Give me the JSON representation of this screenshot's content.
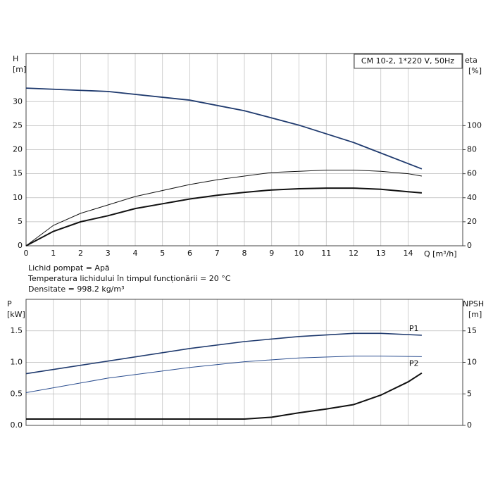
{
  "chart_data": [
    {
      "type": "line",
      "y_label": "H",
      "y_unit": "[m]",
      "y2_label": "eta",
      "y2_unit": "[%]",
      "x_label": "Q [m³/h]",
      "title": "CM 10-2, 1*220 V, 50Hz",
      "notes": [
        "Lichid pompat = Apă",
        "Temperatura lichidului în timpul funcționării = 20 °C",
        "Densitate = 998.2 kg/m³"
      ],
      "xlim": [
        0,
        16
      ],
      "xticks": [
        0,
        1,
        2,
        3,
        4,
        5,
        6,
        7,
        8,
        9,
        10,
        11,
        12,
        13,
        14
      ],
      "ylim": [
        0,
        40
      ],
      "yticks": [
        0,
        5,
        10,
        15,
        20,
        25,
        30
      ],
      "y2lim": [
        0,
        160
      ],
      "y2ticks": [
        0,
        20,
        40,
        60,
        80,
        100
      ],
      "grid": true,
      "series": [
        {
          "color": "#1f3a6e",
          "line_width": 1.8,
          "x": [
            0,
            3,
            6,
            8,
            10,
            12,
            14.5
          ],
          "values": [
            32.8,
            32.1,
            30.3,
            28.1,
            25.1,
            21.5,
            16.0
          ]
        },
        {
          "color": "#111111",
          "line_width": 1,
          "axis": "y2",
          "x": [
            0,
            1,
            2,
            3,
            4,
            5,
            6,
            7,
            8,
            9,
            10,
            11,
            12,
            13,
            14,
            14.5
          ],
          "values": [
            0,
            17,
            27,
            34,
            41,
            46,
            51,
            55,
            58,
            61,
            62,
            63,
            63,
            62,
            60,
            58
          ]
        },
        {
          "color": "#111111",
          "line_width": 2,
          "axis": "y2",
          "x": [
            0,
            1,
            2,
            3,
            4,
            5,
            6,
            7,
            8,
            9,
            10,
            11,
            12,
            13,
            14,
            14.5
          ],
          "values": [
            0,
            12,
            20,
            25,
            31,
            35,
            39,
            42,
            44.5,
            46.5,
            47.5,
            48,
            48,
            47,
            45,
            44
          ]
        }
      ]
    },
    {
      "type": "line",
      "y_label": "P",
      "y_unit": "[kW]",
      "y2_label": "NPSH",
      "y2_unit": "[m]",
      "xlim": [
        0,
        16
      ],
      "xticks": [
        0,
        1,
        2,
        3,
        4,
        5,
        6,
        7,
        8,
        9,
        10,
        11,
        12,
        13,
        14
      ],
      "ylim": [
        0,
        2
      ],
      "yticks": [
        {
          "value": 0,
          "label": "0.0"
        },
        {
          "value": 0.5,
          "label": "0.5"
        },
        {
          "value": 1,
          "label": "1.0"
        },
        {
          "value": 1.5,
          "label": "1.5"
        }
      ],
      "y2lim": [
        0,
        20
      ],
      "y2ticks": [
        0,
        5,
        10,
        15
      ],
      "grid": true,
      "series": [
        {
          "name": "P1",
          "color": "#1f3a6e",
          "line_width": 1.6,
          "x": [
            0,
            3,
            6,
            8,
            10,
            12,
            13,
            14.5
          ],
          "values": [
            0.82,
            1.02,
            1.22,
            1.33,
            1.41,
            1.46,
            1.46,
            1.43
          ]
        },
        {
          "name": "P2",
          "color": "#2a4d8f",
          "line_width": 1,
          "x": [
            0,
            3,
            6,
            8,
            10,
            12,
            13,
            14.5
          ],
          "values": [
            0.52,
            0.75,
            0.92,
            1.01,
            1.07,
            1.1,
            1.1,
            1.09
          ]
        },
        {
          "color": "#111111",
          "line_width": 2,
          "axis": "y2",
          "x": [
            0,
            3,
            6,
            8,
            9,
            10,
            11,
            12,
            13,
            14,
            14.5
          ],
          "values": [
            1.0,
            1.0,
            1.0,
            1.0,
            1.3,
            2.0,
            2.6,
            3.3,
            4.8,
            6.9,
            8.3
          ]
        }
      ]
    }
  ]
}
